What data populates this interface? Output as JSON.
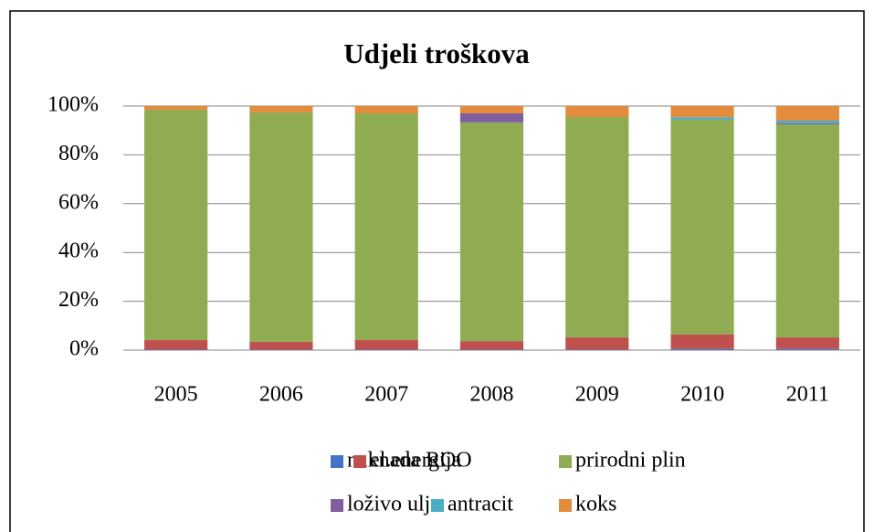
{
  "chart_data": {
    "type": "stacked_bar",
    "title": "Udjeli troškova",
    "categories": [
      "2005",
      "2006",
      "2007",
      "2008",
      "2009",
      "2010",
      "2011"
    ],
    "series": [
      {
        "name": "naknada ROO",
        "color": "#4472c4",
        "values": [
          0.2,
          0.2,
          0.2,
          0.2,
          0.2,
          0.5,
          0.5
        ]
      },
      {
        "name": "el.energija",
        "color": "#c0504d",
        "values": [
          3.9,
          3.2,
          3.9,
          3.5,
          5.0,
          5.9,
          4.7
        ]
      },
      {
        "name": "prirodni plin",
        "color": "#8fac52",
        "values": [
          94.4,
          94.0,
          92.9,
          89.6,
          90.3,
          88.0,
          87.3
        ]
      },
      {
        "name": "loživo ulje",
        "color": "#7f5f9f",
        "values": [
          0,
          0,
          0,
          3.7,
          0,
          0,
          0.5
        ]
      },
      {
        "name": "antracit",
        "color": "#4aaec5",
        "values": [
          0,
          0,
          0,
          0,
          0,
          1.0,
          1.0
        ]
      },
      {
        "name": "koks",
        "color": "#e48c3e",
        "values": [
          1.5,
          2.6,
          3.0,
          3.0,
          4.5,
          4.6,
          6.0
        ]
      }
    ],
    "ylim": [
      0,
      100
    ],
    "yticks": [
      {
        "value": 0,
        "label": "0%"
      },
      {
        "value": 20,
        "label": "20%"
      },
      {
        "value": 40,
        "label": "40%"
      },
      {
        "value": 60,
        "label": "60%"
      },
      {
        "value": 80,
        "label": "80%"
      },
      {
        "value": 100,
        "label": "100%"
      }
    ],
    "grid": true,
    "legend": "bottom"
  }
}
